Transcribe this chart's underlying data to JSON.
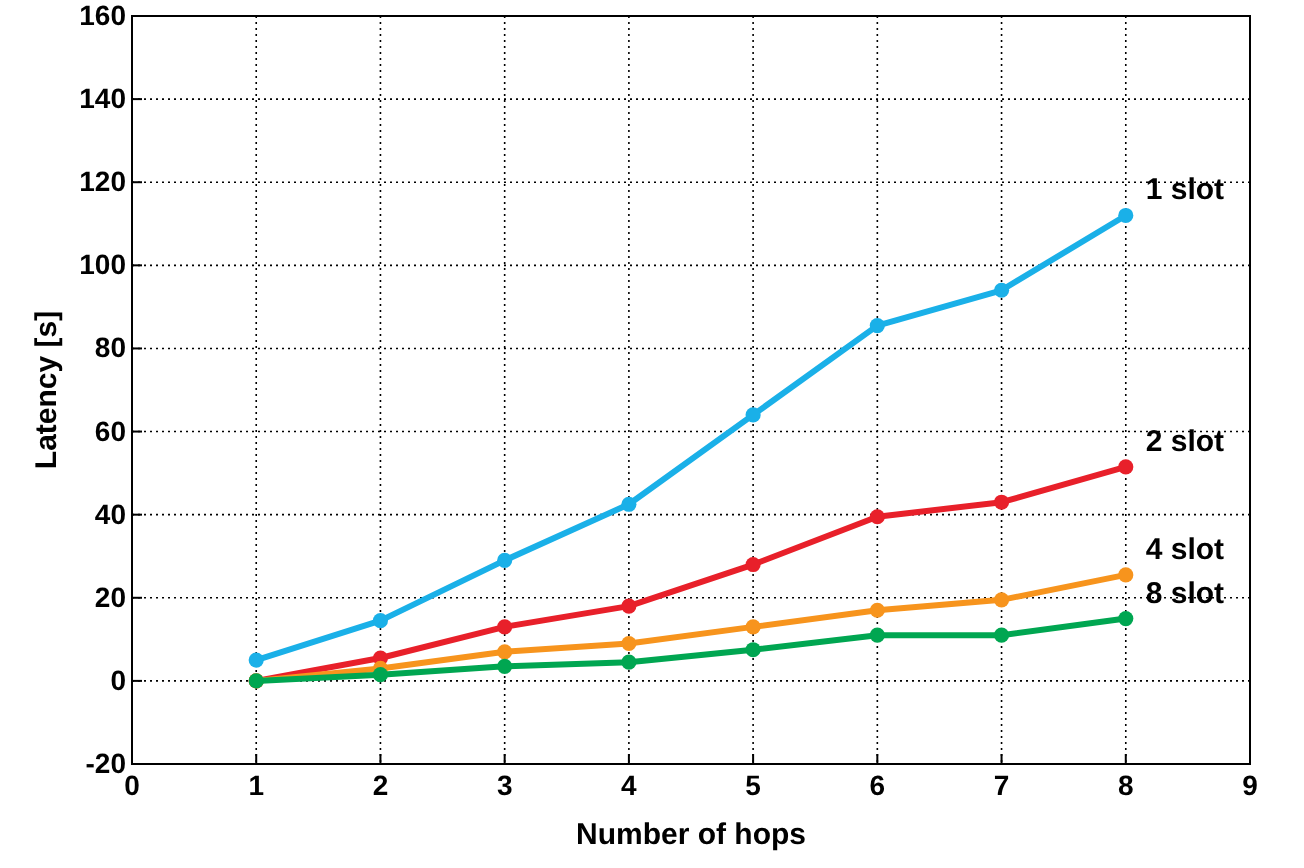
{
  "chart_data": {
    "type": "line",
    "xlabel": "Number of hops",
    "ylabel": "Latency [s]",
    "x": [
      1,
      2,
      3,
      4,
      5,
      6,
      7,
      8
    ],
    "series": [
      {
        "name": "1 slot",
        "color": "#1ab0e8",
        "values": [
          5,
          14.5,
          29,
          42.5,
          64,
          85.5,
          94,
          112
        ]
      },
      {
        "name": "2 slot",
        "color": "#e8202a",
        "values": [
          0,
          5.5,
          13,
          18,
          28,
          39.5,
          43,
          51.5
        ]
      },
      {
        "name": "4 slot",
        "color": "#f7941d",
        "values": [
          0,
          3,
          7,
          9,
          13,
          17,
          19.5,
          25.5
        ]
      },
      {
        "name": "8 slot",
        "color": "#00a651",
        "values": [
          0,
          1.5,
          3.5,
          4.5,
          7.5,
          11,
          11,
          15
        ]
      }
    ],
    "xlim": [
      0,
      9
    ],
    "xticks": [
      0,
      1,
      2,
      3,
      4,
      5,
      6,
      7,
      8,
      9
    ],
    "ylim": [
      -20,
      160
    ],
    "yticks": [
      -20,
      0,
      20,
      40,
      60,
      80,
      100,
      120,
      140,
      160
    ],
    "grid": true,
    "marker": "circle",
    "line_style": "solid"
  }
}
